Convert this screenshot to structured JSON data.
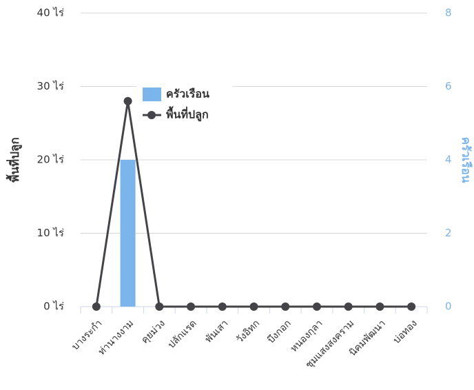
{
  "chart_data": {
    "type": "combo",
    "categories": [
      "บางระกำ",
      "ท่านางงาม",
      "คุยม่วง",
      "ปลักแรด",
      "พันเสา",
      "วังอิทก",
      "บึงกอก",
      "หนองกุลา",
      "ชุมแสงสงคราม",
      "นิคมพัฒนา",
      "บ่อทอง"
    ],
    "series": [
      {
        "name": "ครัวเรือน",
        "type": "column",
        "axis": "y2",
        "color": "#7cb5ec",
        "values": [
          0,
          4,
          0,
          0,
          0,
          0,
          0,
          0,
          0,
          0,
          0
        ]
      },
      {
        "name": "พื้นที่ปลูก",
        "type": "line",
        "axis": "y",
        "color": "#434348",
        "values": [
          0,
          28,
          0,
          0,
          0,
          0,
          0,
          0,
          0,
          0,
          0
        ]
      }
    ],
    "ylabel": "พื้นที่ปลูก",
    "y2label": "ครัวเรือน",
    "ylim": [
      0,
      40
    ],
    "yticks": [
      {
        "value": 0,
        "label": "0 ไร่"
      },
      {
        "value": 10,
        "label": "10 ไร่"
      },
      {
        "value": 20,
        "label": "20 ไร่"
      },
      {
        "value": 30,
        "label": "30 ไร่"
      },
      {
        "value": 40,
        "label": "40 ไร่"
      }
    ],
    "y2lim": [
      0,
      8
    ],
    "y2ticks": [
      0,
      2,
      4,
      6,
      8
    ],
    "y2color": "#7cb5ec",
    "grid": true
  }
}
